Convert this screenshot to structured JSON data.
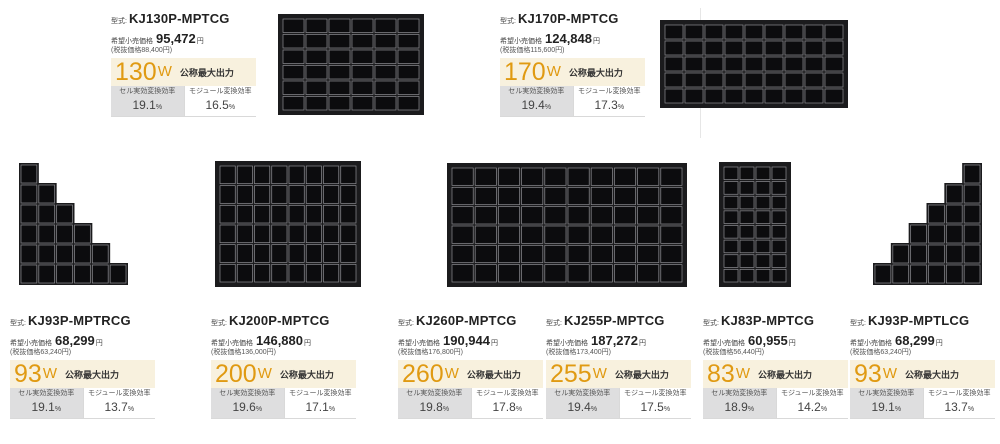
{
  "labels": {
    "model_prefix": "型式:",
    "price_label": "希望小売価格",
    "price_unit": "円",
    "watt_unit": "W",
    "watt_label": "公称最大出力",
    "cell_eff_label": "セル実効変換効率",
    "module_eff_label": "モジュール変換効率",
    "percent": "%"
  },
  "products": [
    {
      "model": "KJ130P-MPTCG",
      "price": "95,472",
      "price_excl": "(税抜価格88,400円)",
      "watt": "130",
      "cell_eff": "19.1",
      "module_eff": "16.5",
      "panel_shape": "rectangle",
      "panel_icon": "solar-panel-icon"
    },
    {
      "model": "KJ170P-MPTCG",
      "price": "124,848",
      "price_excl": "(税抜価格115,600円)",
      "watt": "170",
      "cell_eff": "19.4",
      "module_eff": "17.3",
      "panel_shape": "rectangle",
      "panel_icon": "solar-panel-icon"
    },
    {
      "model": "KJ93P-MPTRCG",
      "price": "68,299",
      "price_excl": "(税抜価格63,240円)",
      "watt": "93",
      "cell_eff": "19.1",
      "module_eff": "13.7",
      "panel_shape": "stepped-right",
      "panel_icon": "solar-panel-icon"
    },
    {
      "model": "KJ200P-MPTCG",
      "price": "146,880",
      "price_excl": "(税抜価格136,000円)",
      "watt": "200",
      "cell_eff": "19.6",
      "module_eff": "17.1",
      "panel_shape": "rectangle",
      "panel_icon": "solar-panel-icon"
    },
    {
      "model": "KJ260P-MPTCG",
      "price": "190,944",
      "price_excl": "(税抜価格176,800円)",
      "watt": "260",
      "cell_eff": "19.8",
      "module_eff": "17.8",
      "panel_shape": "rectangle",
      "panel_icon": "solar-panel-icon"
    },
    {
      "model": "KJ255P-MPTCG",
      "price": "187,272",
      "price_excl": "(税抜価格173,400円)",
      "watt": "255",
      "cell_eff": "19.4",
      "module_eff": "17.5",
      "panel_shape": "rectangle",
      "panel_icon": "solar-panel-icon"
    },
    {
      "model": "KJ83P-MPTCG",
      "price": "60,955",
      "price_excl": "(税抜価格56,440円)",
      "watt": "83",
      "cell_eff": "18.9",
      "module_eff": "14.2",
      "panel_shape": "rectangle",
      "panel_icon": "solar-panel-icon"
    },
    {
      "model": "KJ93P-MPTLCG",
      "price": "68,299",
      "price_excl": "(税抜価格63,240円)",
      "watt": "93",
      "cell_eff": "19.1",
      "module_eff": "13.7",
      "panel_shape": "stepped-left",
      "panel_icon": "solar-panel-icon"
    }
  ]
}
